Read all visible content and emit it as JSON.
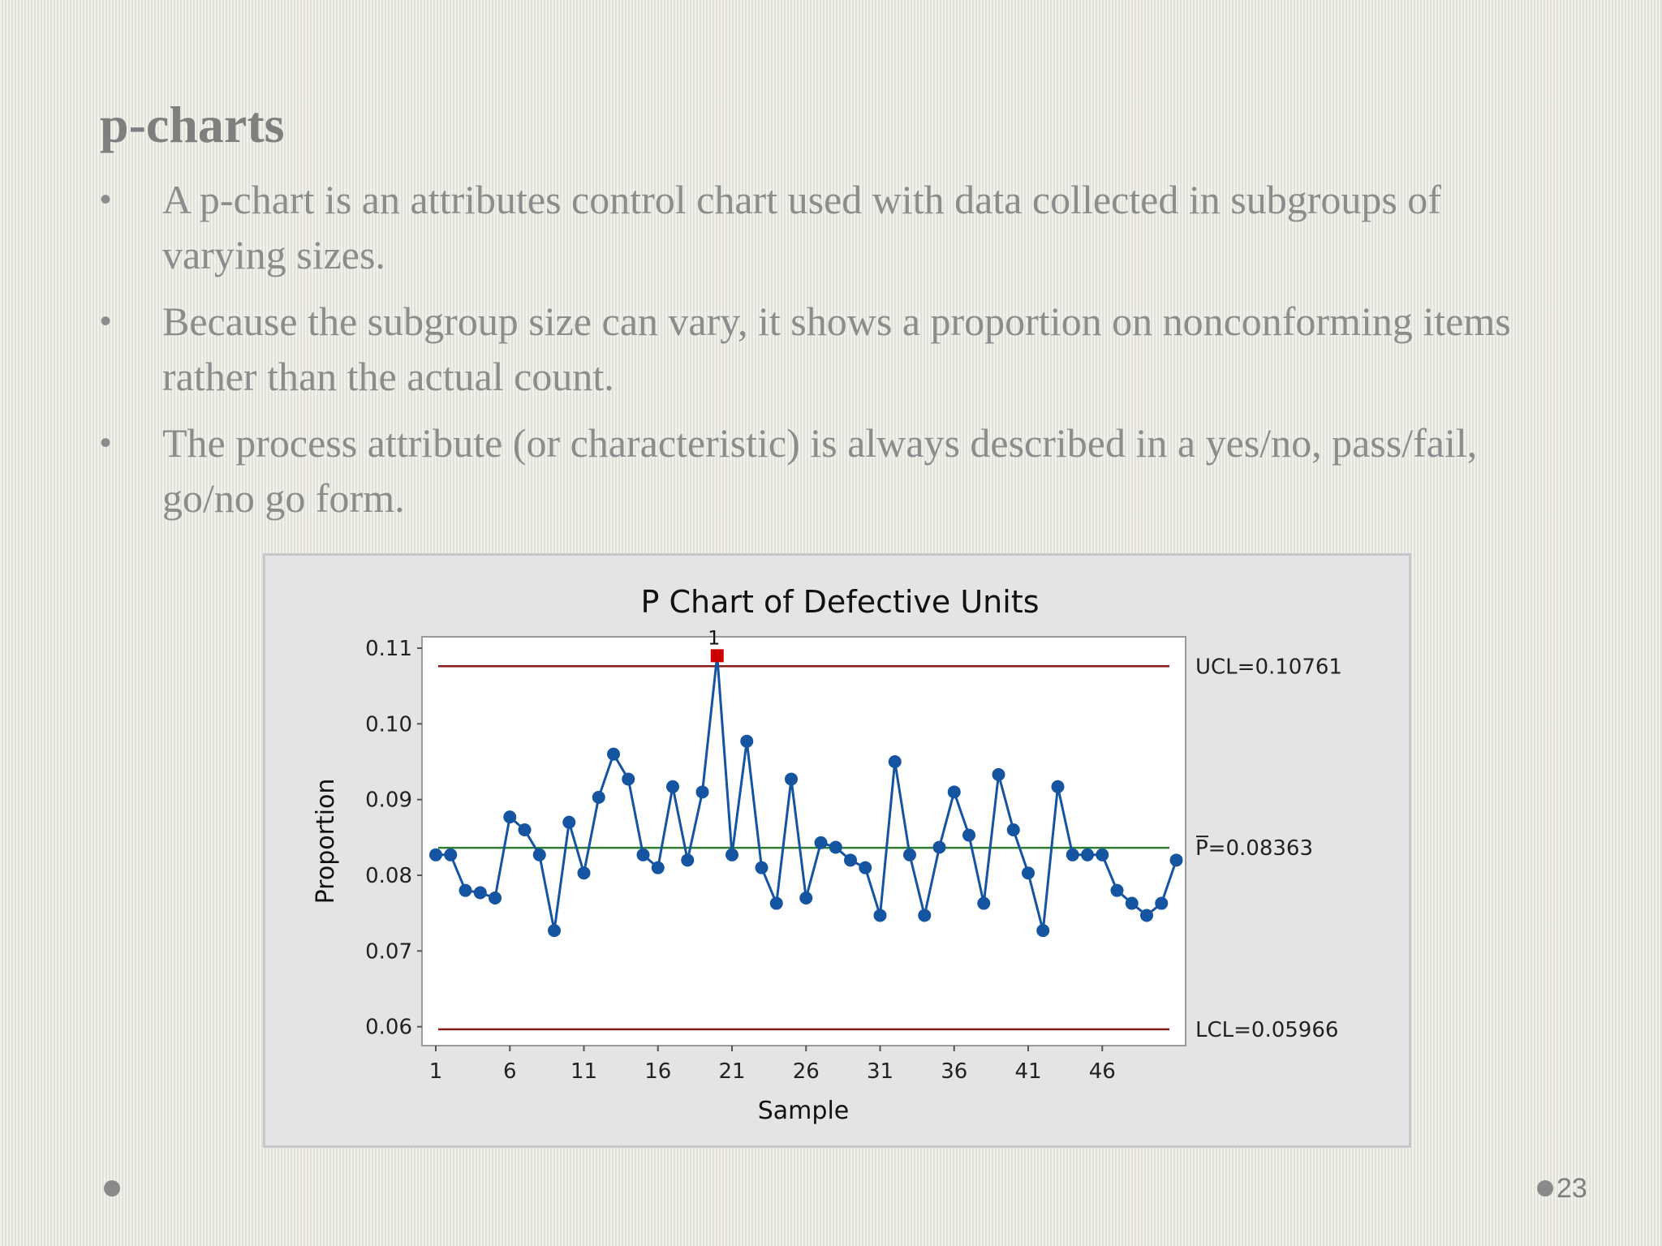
{
  "slide": {
    "title": "p-charts",
    "bullets": [
      "A p-chart is an attributes control chart used with data collected in subgroups of varying sizes.",
      "Because the subgroup size can vary, it shows a proportion on nonconforming items rather than the actual count.",
      "The process attribute (or characteristic) is always described in a yes/no, pass/fail, go/no go form."
    ],
    "bullet_symbol": "•",
    "page_number": "23"
  },
  "chart_data": {
    "type": "line",
    "title": "P Chart of Defective Units",
    "xlabel": "Sample",
    "ylabel": "Proportion",
    "xlim": [
      0,
      51
    ],
    "ylim": [
      0.0575,
      0.1115
    ],
    "xticks": [
      1,
      6,
      11,
      16,
      21,
      26,
      31,
      36,
      41,
      46
    ],
    "yticks": [
      0.06,
      0.07,
      0.08,
      0.09,
      0.1,
      0.11
    ],
    "ytick_labels": [
      "0.06",
      "0.07",
      "0.08",
      "0.09",
      "0.10",
      "0.11"
    ],
    "grid": false,
    "series": [
      {
        "values": [
          0.0827,
          0.0827,
          0.078,
          0.0777,
          0.077,
          0.0877,
          0.086,
          0.0827,
          0.0727,
          0.087,
          0.0803,
          0.0903,
          0.096,
          0.0927,
          0.0827,
          0.081,
          0.0917,
          0.082,
          0.091,
          0.109,
          0.0827,
          0.0977,
          0.081,
          0.0763,
          0.0927,
          0.077,
          0.0843,
          0.0837,
          0.082,
          0.081,
          0.0747,
          0.095,
          0.0827,
          0.0747,
          0.0837,
          0.091,
          0.0853,
          0.0763,
          0.0933,
          0.086,
          0.0803,
          0.0727,
          0.0917,
          0.0827,
          0.0827,
          0.0827,
          0.078,
          0.0763,
          0.0747,
          0.0763,
          0.082
        ],
        "color": "#1554a0"
      }
    ],
    "control_limits": {
      "ucl": {
        "label": "UCL=0.10761",
        "value": 0.10761,
        "color": "#8b1a1a"
      },
      "center": {
        "label": "P=0.08363",
        "value": 0.08363,
        "color": "#2e7d32"
      },
      "lcl": {
        "label": "LCL=0.05966",
        "value": 0.05966,
        "color": "#8b1a1a"
      }
    },
    "flagged_points": [
      {
        "sample": 20,
        "value": 0.109,
        "label": "1",
        "color": "#cc0000"
      }
    ]
  }
}
